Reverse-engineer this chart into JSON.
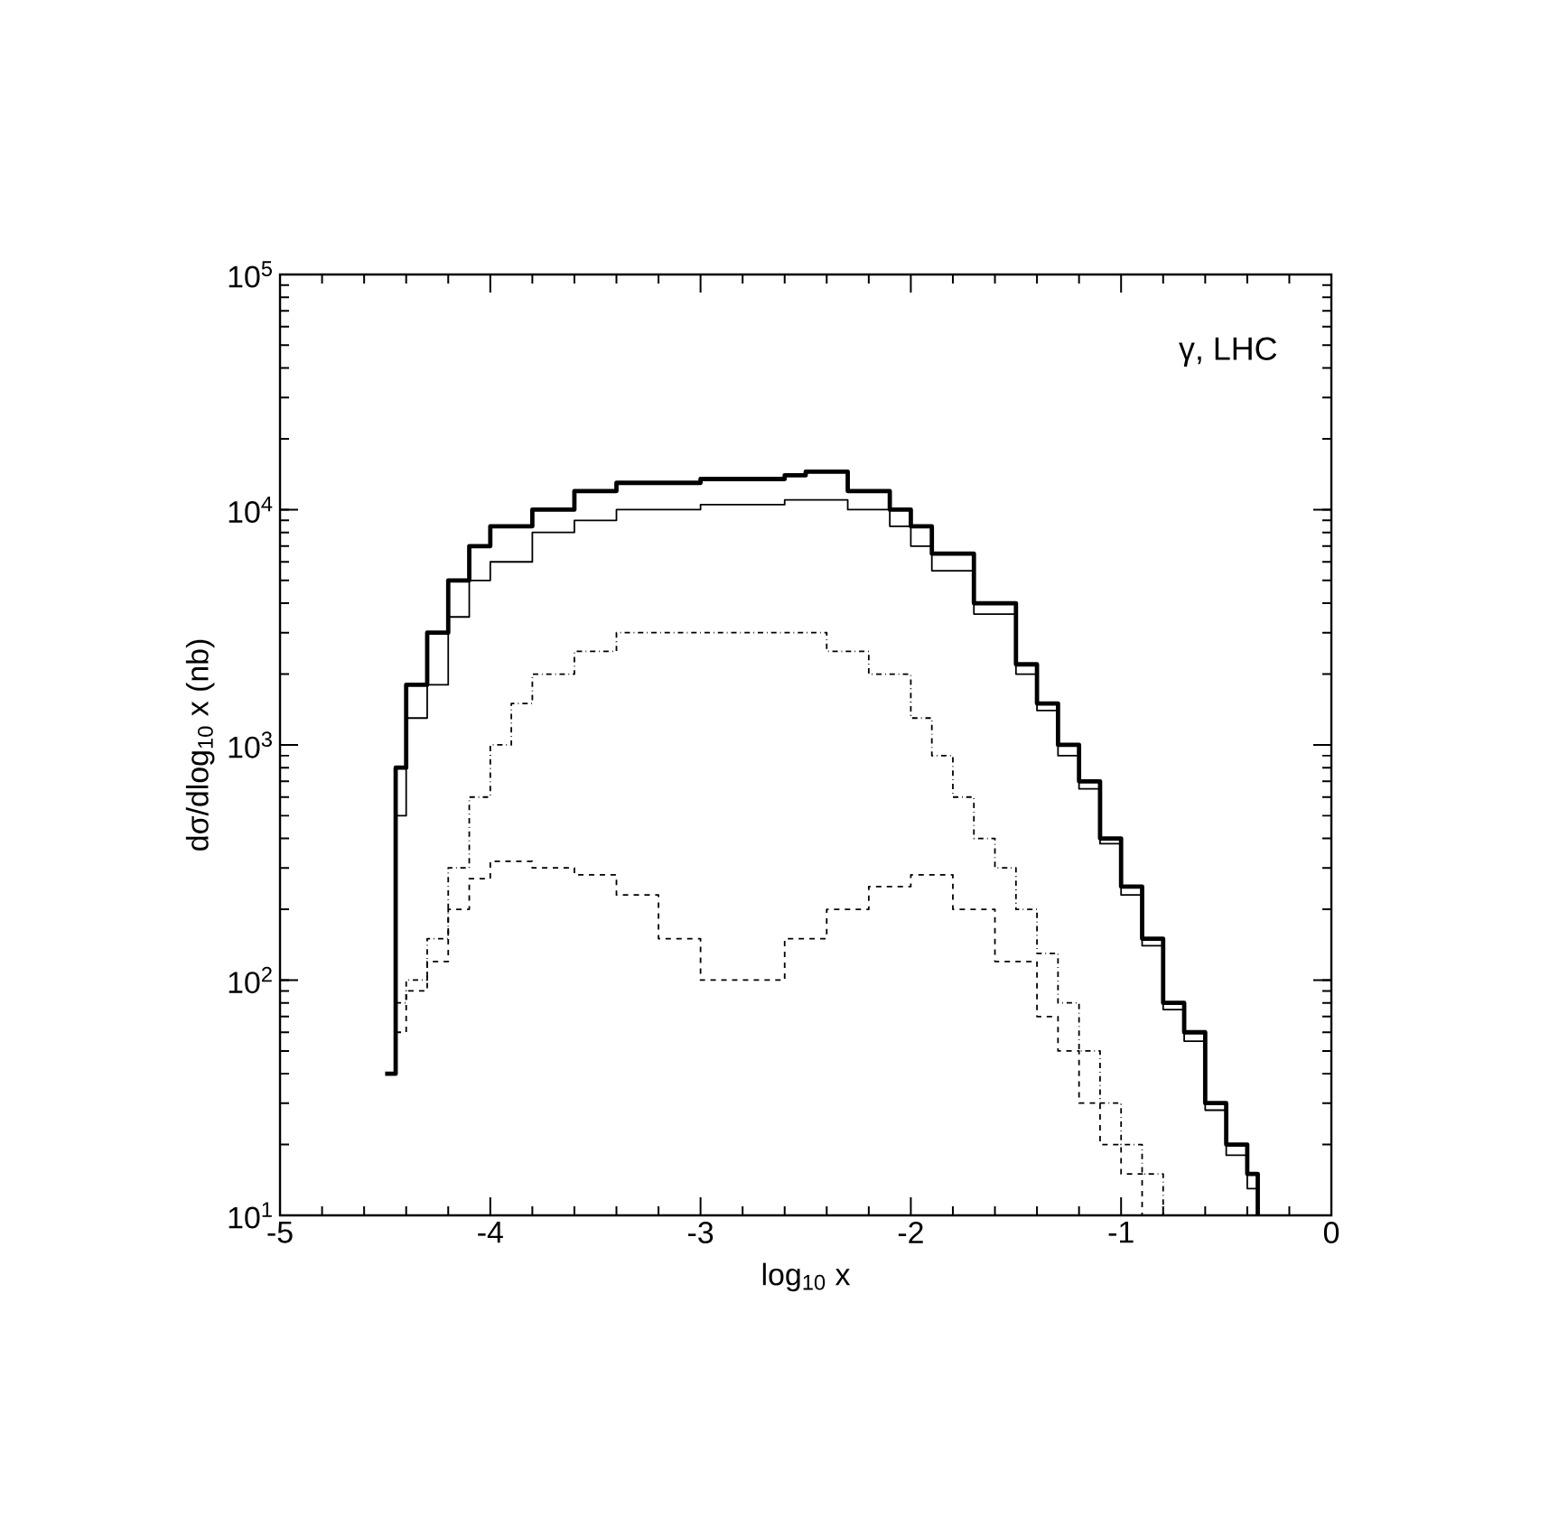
{
  "chart_data": {
    "type": "step",
    "xlabel": "log$_{10}$ x",
    "ylabel": "dσ/dlog$_{10}$ x  (nb)",
    "log": "y",
    "xlim": [
      -5,
      0
    ],
    "ylim": [
      10,
      100000
    ],
    "xticks": [
      -5,
      -4,
      -3,
      -2,
      -1,
      0
    ],
    "yticks": [
      {
        "value": 10,
        "label": "10$^{1}$"
      },
      {
        "value": 100,
        "label": "10$^{2}$"
      },
      {
        "value": 1000,
        "label": "10$^{3}$"
      },
      {
        "value": 10000,
        "label": "10$^{4}$"
      },
      {
        "value": 100000,
        "label": "10$^{5}$"
      }
    ],
    "annotations": [
      "γ, LHC"
    ],
    "series": [
      {
        "color": "#000000",
        "line_style": "solid",
        "x": [
          -4.5,
          -4.45,
          -4.4,
          -4.3,
          -4.2,
          -4.1,
          -4.0,
          -3.8,
          -3.6,
          -3.4,
          -3.0,
          -2.6,
          -2.5,
          -2.3,
          -2.1,
          -2.0,
          -1.9,
          -1.7,
          -1.5,
          -1.4,
          -1.3,
          -1.2,
          -1.1,
          -1.0,
          -0.9,
          -0.8,
          -0.7,
          -0.6,
          -0.5,
          -0.4,
          -0.35
        ],
        "values": [
          40,
          800,
          1800,
          3000,
          5000,
          7000,
          8500,
          10000,
          12000,
          13000,
          13500,
          14000,
          14500,
          12000,
          10000,
          8500,
          6500,
          4000,
          2200,
          1500,
          1000,
          700,
          400,
          250,
          150,
          80,
          60,
          30,
          20,
          15,
          10
        ]
      },
      {
        "color": "#000000",
        "line_style": "solid",
        "x": [
          -4.45,
          -4.4,
          -4.3,
          -4.2,
          -4.1,
          -4.0,
          -3.8,
          -3.6,
          -3.4,
          -3.0,
          -2.6,
          -2.5,
          -2.3,
          -2.1,
          -2.0,
          -1.9,
          -1.7,
          -1.5,
          -1.4,
          -1.3,
          -1.2,
          -1.1,
          -1.0,
          -0.9,
          -0.8,
          -0.7,
          -0.6,
          -0.5,
          -0.4,
          -0.35
        ],
        "values": [
          500,
          1300,
          1800,
          3500,
          5000,
          6000,
          8000,
          9000,
          10000,
          10500,
          11000,
          11000,
          10000,
          8500,
          7000,
          5500,
          3600,
          2000,
          1400,
          900,
          650,
          380,
          230,
          140,
          75,
          55,
          28,
          18,
          13,
          10
        ]
      },
      {
        "color": "#000000",
        "line_style": "dotted",
        "x": [
          -4.45,
          -4.4,
          -4.3,
          -4.2,
          -4.1,
          -4.0,
          -3.9,
          -3.8,
          -3.6,
          -3.4,
          -3.0,
          -2.6,
          -2.4,
          -2.2,
          -2.0,
          -1.9,
          -1.8,
          -1.7,
          -1.6,
          -1.5,
          -1.4,
          -1.3,
          -1.2,
          -1.1,
          -1.0,
          -0.9,
          -0.8
        ],
        "values": [
          80,
          100,
          150,
          300,
          600,
          1000,
          1500,
          2000,
          2500,
          3000,
          3000,
          3000,
          2500,
          2000,
          1300,
          900,
          600,
          400,
          300,
          200,
          130,
          80,
          50,
          30,
          20,
          15,
          10
        ]
      },
      {
        "color": "#000000",
        "line_style": "dashed",
        "x": [
          -4.45,
          -4.4,
          -4.3,
          -4.2,
          -4.1,
          -4.0,
          -3.8,
          -3.6,
          -3.4,
          -3.2,
          -3.0,
          -2.8,
          -2.6,
          -2.4,
          -2.2,
          -2.0,
          -1.8,
          -1.6,
          -1.4,
          -1.3,
          -1.2,
          -1.1,
          -1.0,
          -0.9
        ],
        "values": [
          60,
          90,
          120,
          200,
          270,
          320,
          300,
          280,
          230,
          150,
          100,
          100,
          150,
          200,
          250,
          280,
          200,
          120,
          70,
          50,
          30,
          20,
          15,
          10
        ]
      }
    ]
  }
}
